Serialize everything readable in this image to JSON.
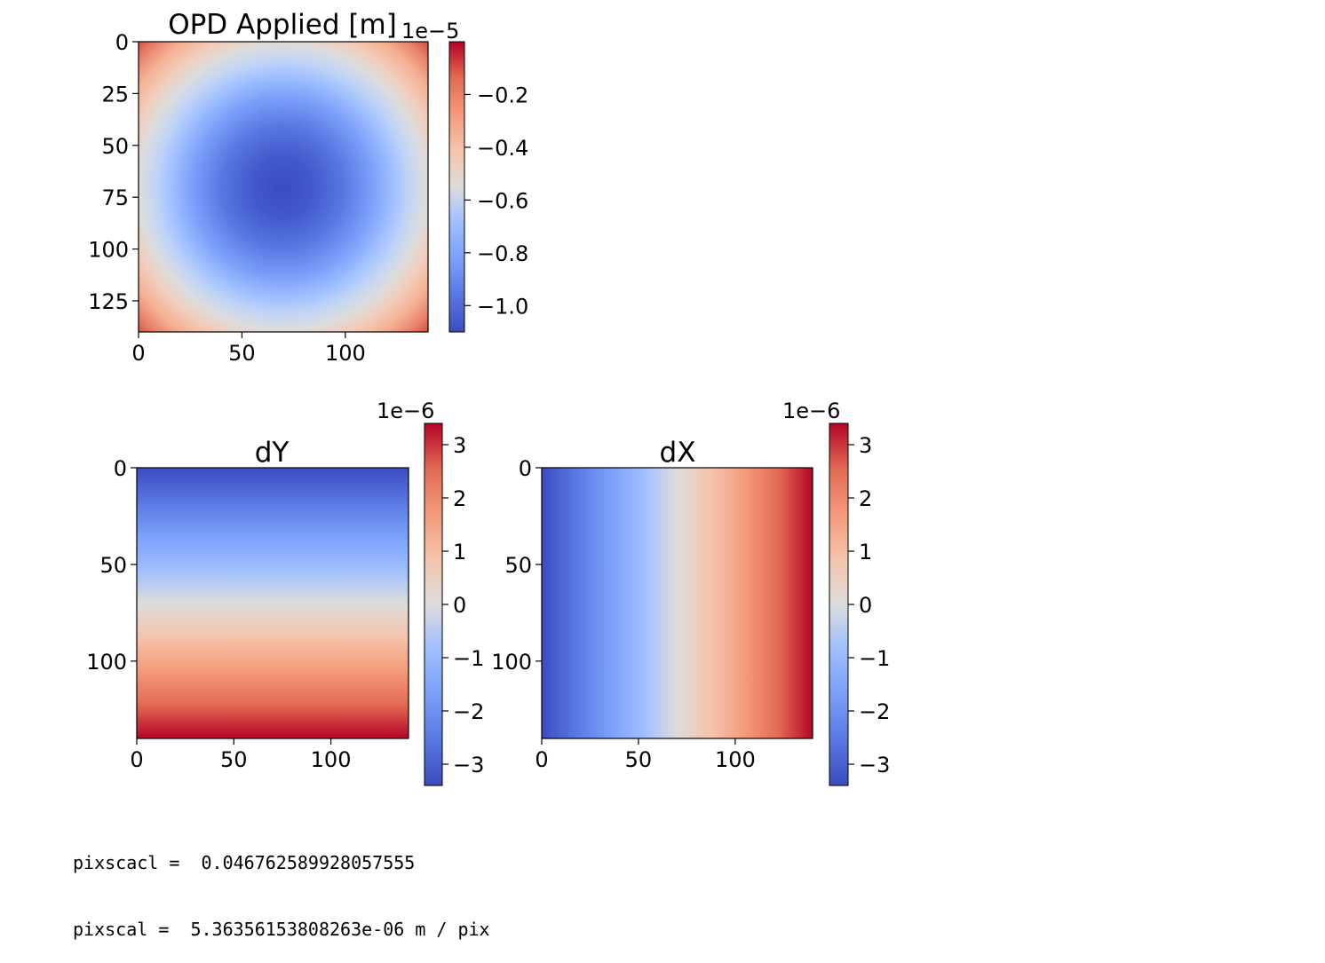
{
  "chart_data": [
    {
      "type": "heatmap",
      "title": "OPD Applied [m]",
      "colormap": "coolwarm",
      "function": "radial",
      "center": [
        70,
        70
      ],
      "grid_size": 140,
      "x_ticks": [
        0,
        50,
        100
      ],
      "y_ticks": [
        0,
        25,
        50,
        75,
        100,
        125
      ],
      "xlim": [
        0,
        140
      ],
      "ylim": [
        140,
        0
      ],
      "colorbar": {
        "min": -1.1,
        "max": 0.0,
        "offset_label": "1e−5",
        "ticks": [
          -0.2,
          -0.4,
          -0.6,
          -0.8,
          -1.0
        ],
        "tick_labels": [
          "−0.2",
          "−0.4",
          "−0.6",
          "−0.8",
          "−1.0"
        ]
      }
    },
    {
      "type": "heatmap",
      "title": "dY",
      "colormap": "coolwarm",
      "function": "vertical_gradient",
      "grid_size": 140,
      "x_ticks": [
        0,
        50,
        100
      ],
      "y_ticks": [
        0,
        50,
        100
      ],
      "xlim": [
        0,
        140
      ],
      "ylim": [
        140,
        0
      ],
      "colorbar": {
        "min": -3.4,
        "max": 3.4,
        "offset_label": "1e−6",
        "ticks": [
          3,
          2,
          1,
          0,
          -1,
          -2,
          -3
        ],
        "tick_labels": [
          "3",
          "2",
          "1",
          "0",
          "−1",
          "−2",
          "−3"
        ]
      }
    },
    {
      "type": "heatmap",
      "title": "dX",
      "colormap": "coolwarm",
      "function": "horizontal_gradient",
      "grid_size": 140,
      "x_ticks": [
        0,
        50,
        100
      ],
      "y_ticks": [
        0,
        50,
        100
      ],
      "xlim": [
        0,
        140
      ],
      "ylim": [
        140,
        0
      ],
      "colorbar": {
        "min": -3.4,
        "max": 3.4,
        "offset_label": "1e−6",
        "ticks": [
          3,
          2,
          1,
          0,
          -1,
          -2,
          -3
        ],
        "tick_labels": [
          "3",
          "2",
          "1",
          "0",
          "−1",
          "−2",
          "−3"
        ]
      }
    }
  ],
  "output": {
    "line1": "pixscacl =  0.046762589928057555",
    "line2": "pixscal =  5.36356153808263e-06 m / pix"
  }
}
